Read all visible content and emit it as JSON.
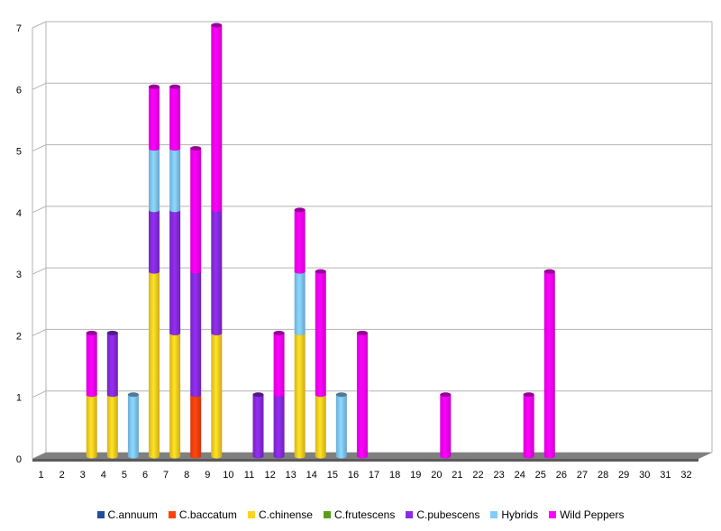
{
  "chart_data": {
    "type": "bar",
    "stacked": true,
    "style": "3d",
    "categories": [
      "1",
      "2",
      "3",
      "4",
      "5",
      "6",
      "7",
      "8",
      "9",
      "10",
      "11",
      "12",
      "13",
      "14",
      "15",
      "16",
      "17",
      "18",
      "19",
      "20",
      "21",
      "22",
      "23",
      "24",
      "25",
      "26",
      "27",
      "28",
      "29",
      "30",
      "31",
      "32"
    ],
    "y_ticks": [
      "0",
      "1",
      "2",
      "3",
      "4",
      "5",
      "6",
      "7"
    ],
    "ylim": [
      0,
      7
    ],
    "grid": true,
    "legend_position": "bottom",
    "series": [
      {
        "name": "C.annuum",
        "color": "#1f4e9c",
        "values": [
          0,
          0,
          0,
          0,
          0,
          0,
          0,
          0,
          0,
          0,
          0,
          0,
          0,
          0,
          0,
          0,
          0,
          0,
          0,
          0,
          0,
          0,
          0,
          0,
          0,
          0,
          0,
          0,
          0,
          0,
          0,
          0
        ]
      },
      {
        "name": "C.baccatum",
        "color": "#ff420e",
        "values": [
          0,
          0,
          0,
          0,
          0,
          0,
          0,
          1,
          0,
          0,
          0,
          0,
          0,
          0,
          0,
          0,
          0,
          0,
          0,
          0,
          0,
          0,
          0,
          0,
          0,
          0,
          0,
          0,
          0,
          0,
          0,
          0
        ]
      },
      {
        "name": "C.chinense",
        "color": "#ffd320",
        "values": [
          0,
          0,
          1,
          1,
          0,
          3,
          2,
          0,
          2,
          0,
          0,
          0,
          2,
          1,
          0,
          0,
          0,
          0,
          0,
          0,
          0,
          0,
          0,
          0,
          0,
          0,
          0,
          0,
          0,
          0,
          0,
          0
        ]
      },
      {
        "name": "C.frutescens",
        "color": "#579d1c",
        "values": [
          0,
          0,
          0,
          0,
          0,
          0,
          0,
          0,
          0,
          0,
          0,
          0,
          0,
          0,
          0,
          0,
          0,
          0,
          0,
          0,
          0,
          0,
          0,
          0,
          0,
          0,
          0,
          0,
          0,
          0,
          0,
          0
        ]
      },
      {
        "name": "C.pubescens",
        "color": "#8a2be2",
        "values": [
          0,
          0,
          0,
          1,
          0,
          1,
          2,
          2,
          2,
          0,
          1,
          1,
          0,
          0,
          0,
          0,
          0,
          0,
          0,
          0,
          0,
          0,
          0,
          0,
          0,
          0,
          0,
          0,
          0,
          0,
          0,
          0
        ]
      },
      {
        "name": "Hybrids",
        "color": "#83caff",
        "values": [
          0,
          0,
          0,
          0,
          1,
          1,
          1,
          0,
          0,
          0,
          0,
          0,
          1,
          0,
          1,
          0,
          0,
          0,
          0,
          0,
          0,
          0,
          0,
          0,
          0,
          0,
          0,
          0,
          0,
          0,
          0,
          0
        ]
      },
      {
        "name": "Wild Peppers",
        "color": "#ff00ff",
        "values": [
          0,
          0,
          1,
          0,
          0,
          1,
          1,
          2,
          3,
          0,
          0,
          1,
          1,
          2,
          0,
          2,
          0,
          0,
          0,
          1,
          0,
          0,
          0,
          1,
          3,
          0,
          0,
          0,
          0,
          0,
          0,
          0
        ]
      }
    ]
  }
}
